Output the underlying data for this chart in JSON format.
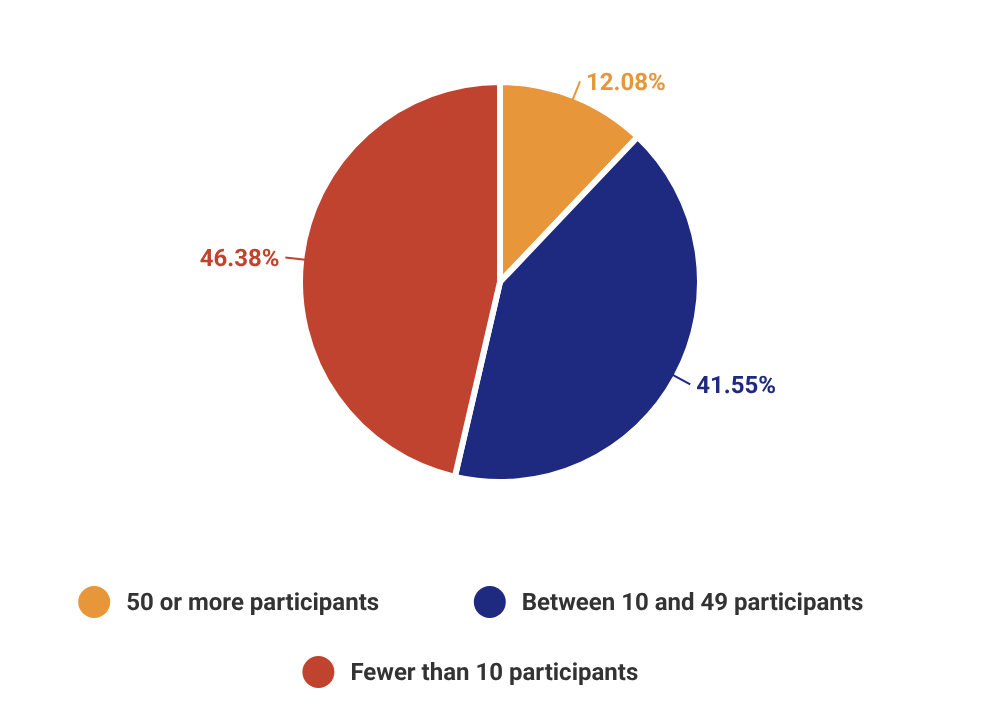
{
  "chart_data": {
    "type": "pie",
    "categories": [
      "50 or more participants",
      "Between 10 and 49 participants",
      "Fewer than 10 participants"
    ],
    "values": [
      12.08,
      41.55,
      46.38
    ],
    "colors": [
      "#e8963a",
      "#1e2a80",
      "#c0432f"
    ],
    "value_labels": [
      "12.08%",
      "41.55%",
      "46.38%"
    ],
    "legend": "bottom"
  }
}
